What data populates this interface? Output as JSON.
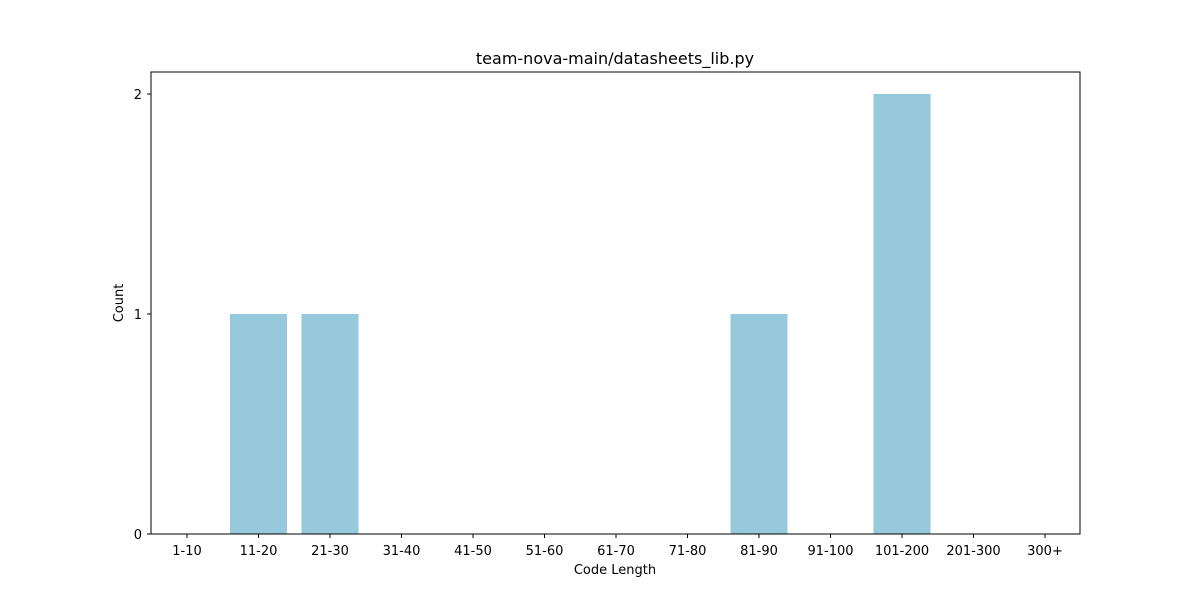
{
  "chart_data": {
    "type": "bar",
    "title": "team-nova-main/datasheets_lib.py",
    "xlabel": "Code Length",
    "ylabel": "Count",
    "categories": [
      "1-10",
      "11-20",
      "21-30",
      "31-40",
      "41-50",
      "51-60",
      "61-70",
      "71-80",
      "81-90",
      "91-100",
      "101-200",
      "201-300",
      "300+"
    ],
    "values": [
      0,
      1,
      1,
      0,
      0,
      0,
      0,
      0,
      1,
      0,
      2,
      0,
      0
    ],
    "ylim": [
      0,
      2.1
    ],
    "yticks": [
      "0",
      "1",
      "2"
    ],
    "bar_color": "#96c9dc",
    "grid": false,
    "legend": "none"
  }
}
